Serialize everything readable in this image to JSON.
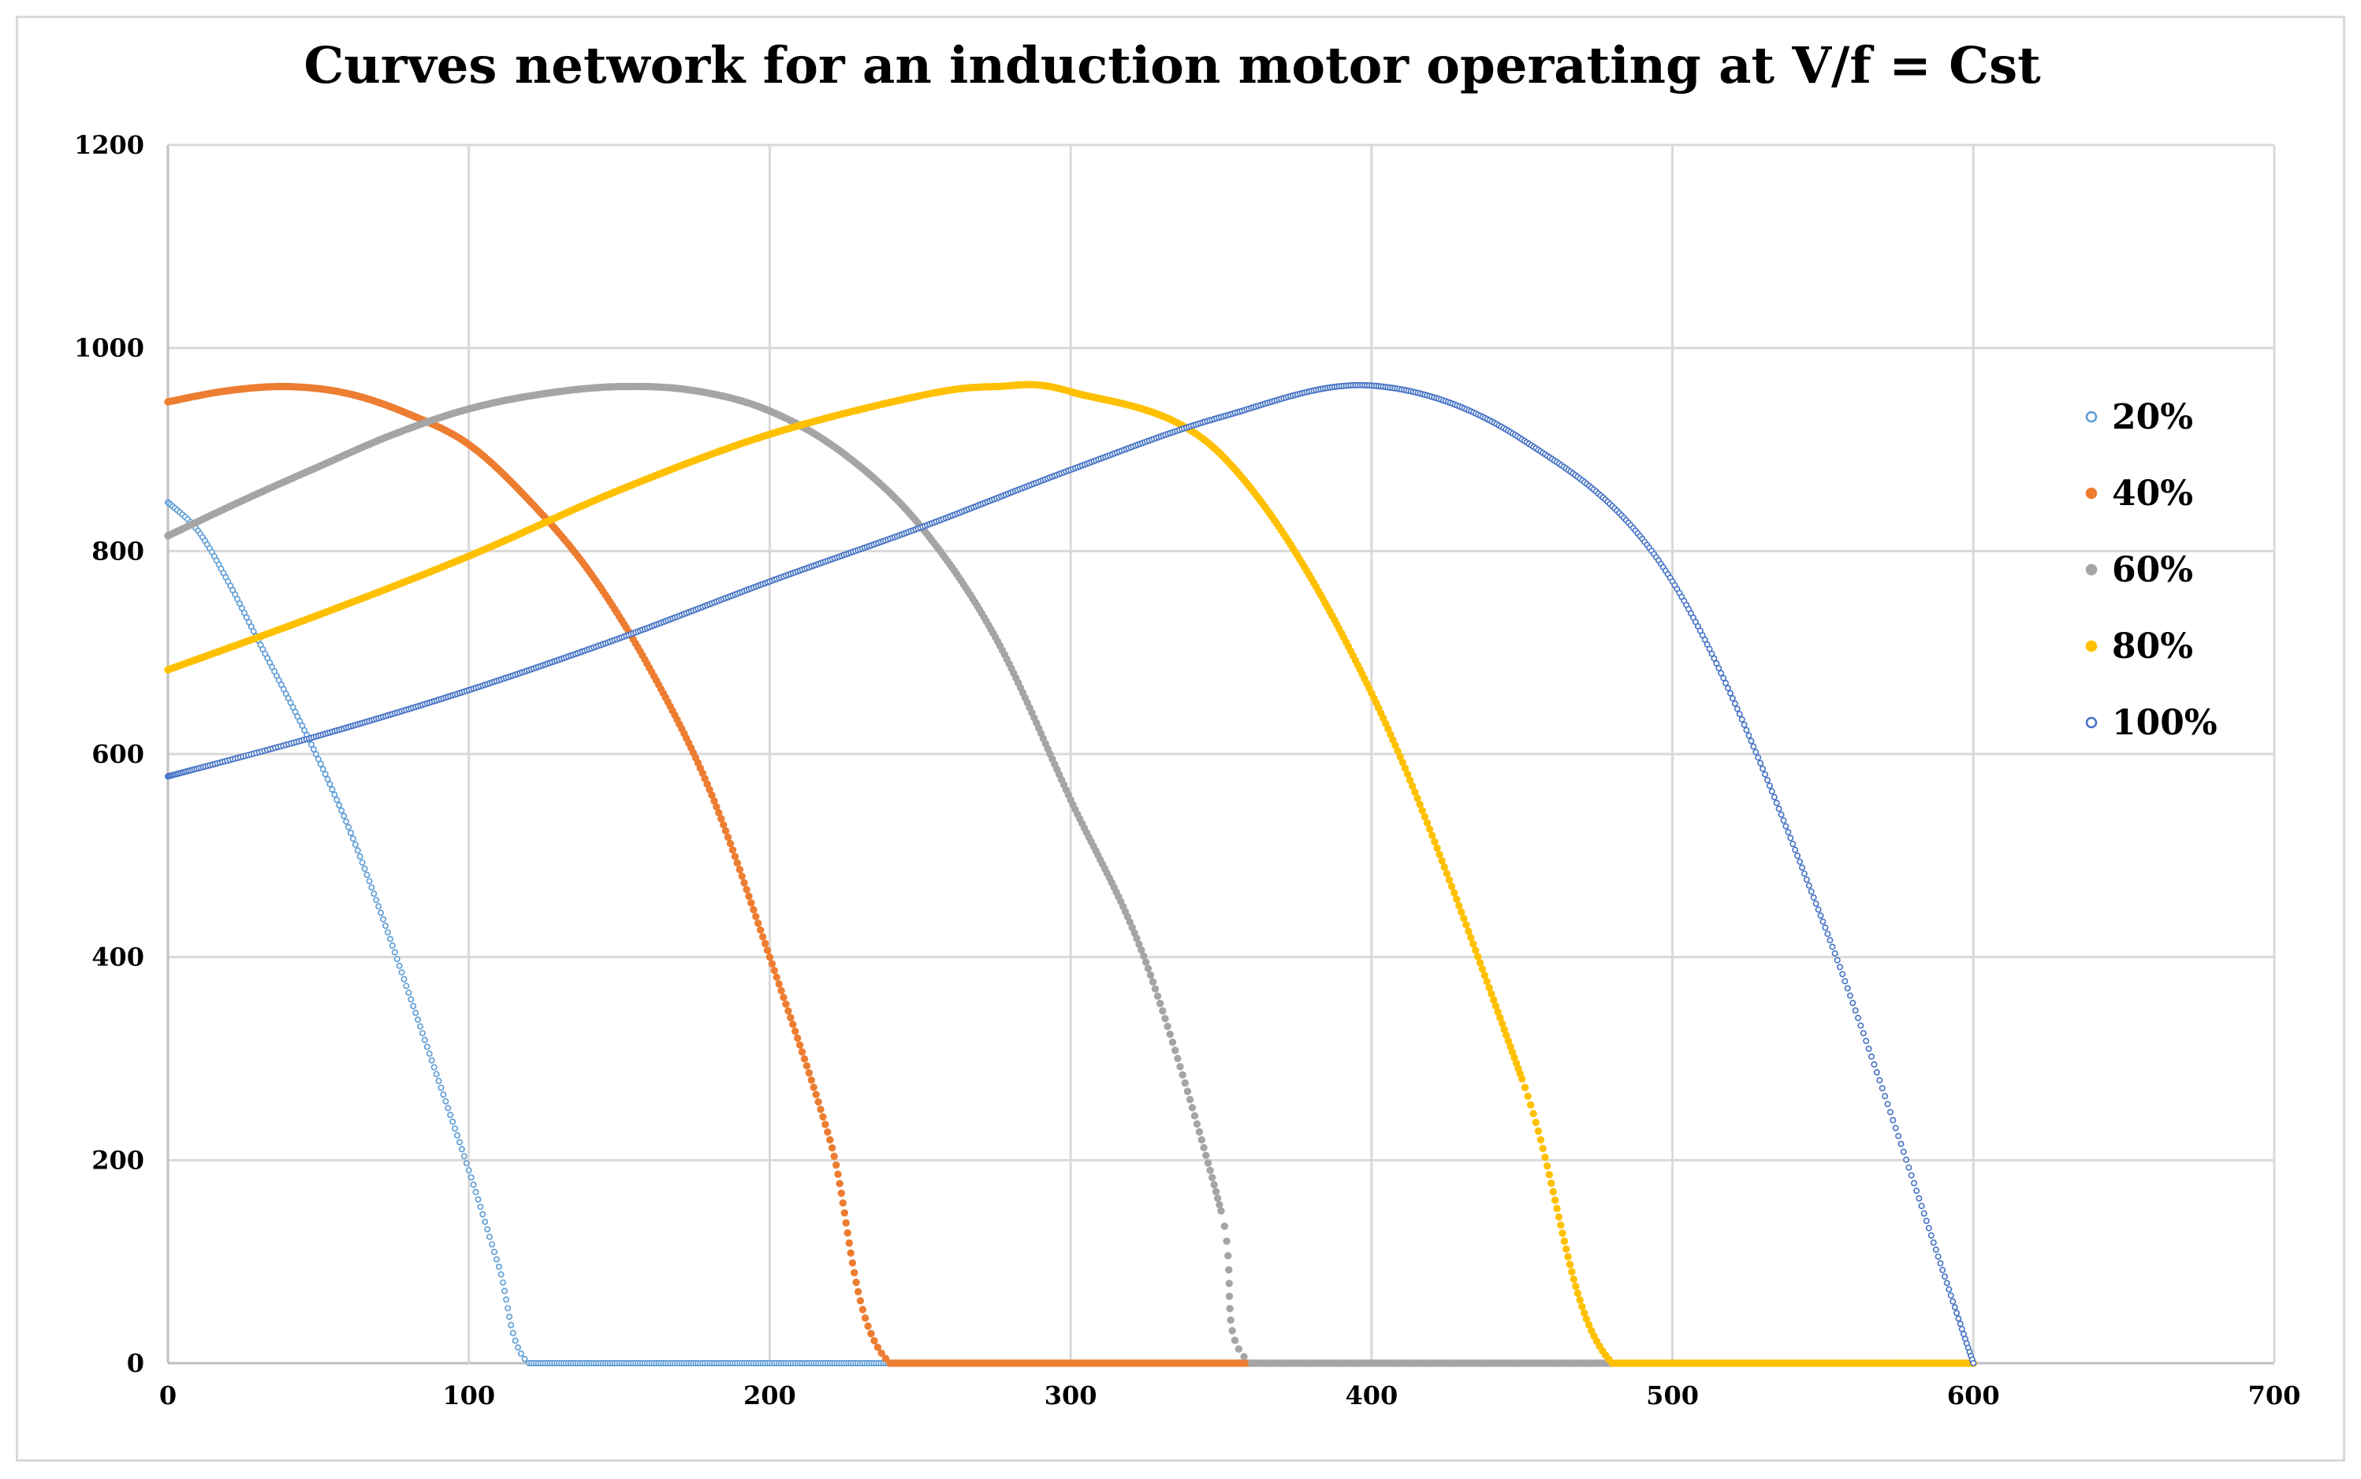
{
  "chart_data": {
    "type": "scatter",
    "title": "Curves network for an induction motor operating at V/f = Cst",
    "xlabel": "",
    "ylabel": "",
    "xlim": [
      0,
      700
    ],
    "ylim": [
      0,
      1200
    ],
    "x_ticks": [
      0,
      100,
      200,
      300,
      400,
      500,
      600,
      700
    ],
    "y_ticks": [
      0,
      200,
      400,
      600,
      800,
      1000,
      1200
    ],
    "x_tick_labels": [
      "0",
      "100",
      "200",
      "300",
      "400",
      "500",
      "600",
      "700"
    ],
    "y_tick_labels": [
      "0",
      "200",
      "400",
      "600",
      "800",
      "1000",
      "1200"
    ],
    "grid": true,
    "legend_position": "right",
    "series": [
      {
        "name": "20%",
        "color": "#5b9bd5",
        "marker": "hollow-circle",
        "x": [
          0,
          10,
          20,
          30,
          40,
          50,
          60,
          70,
          80,
          90,
          100,
          110,
          120,
          150,
          200,
          240
        ],
        "y": [
          848,
          820,
          770,
          712,
          655,
          595,
          528,
          450,
          365,
          278,
          190,
          95,
          0,
          0,
          0,
          0
        ]
      },
      {
        "name": "40%",
        "color": "#ed7d31",
        "marker": "filled-circle",
        "x": [
          0,
          20,
          40,
          60,
          80,
          100,
          120,
          140,
          160,
          180,
          200,
          220,
          240,
          300,
          360
        ],
        "y": [
          947,
          958,
          962,
          955,
          935,
          905,
          850,
          780,
          685,
          565,
          400,
          220,
          0,
          0,
          0
        ]
      },
      {
        "name": "60%",
        "color": "#a5a5a5",
        "marker": "filled-circle",
        "x": [
          0,
          25,
          50,
          75,
          100,
          125,
          150,
          175,
          200,
          225,
          250,
          275,
          300,
          325,
          350,
          360,
          420,
          480
        ],
        "y": [
          815,
          850,
          883,
          915,
          940,
          955,
          962,
          958,
          938,
          895,
          825,
          715,
          555,
          395,
          150,
          0,
          0,
          0
        ]
      },
      {
        "name": "80%",
        "color": "#ffc000",
        "marker": "filled-circle",
        "x": [
          0,
          50,
          100,
          150,
          200,
          250,
          275,
          300,
          350,
          400,
          450,
          480,
          540,
          600
        ],
        "y": [
          683,
          737,
          795,
          860,
          915,
          953,
          962,
          957,
          895,
          660,
          280,
          0,
          0,
          0
        ]
      },
      {
        "name": "100%",
        "color": "#4472c4",
        "marker": "hollow-circle",
        "x": [
          0,
          50,
          100,
          150,
          200,
          250,
          300,
          350,
          400,
          450,
          500,
          550,
          600
        ],
        "y": [
          578,
          618,
          663,
          714,
          770,
          823,
          880,
          932,
          963,
          910,
          770,
          435,
          0
        ]
      }
    ]
  }
}
